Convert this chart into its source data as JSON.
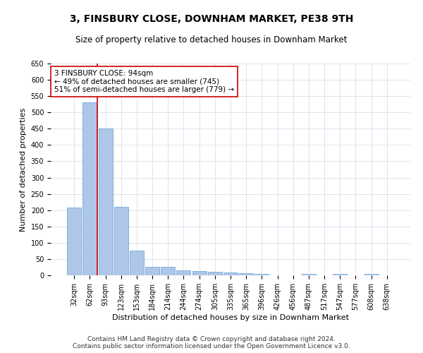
{
  "title": "3, FINSBURY CLOSE, DOWNHAM MARKET, PE38 9TH",
  "subtitle": "Size of property relative to detached houses in Downham Market",
  "xlabel": "Distribution of detached houses by size in Downham Market",
  "ylabel": "Number of detached properties",
  "categories": [
    "32sqm",
    "62sqm",
    "93sqm",
    "123sqm",
    "153sqm",
    "184sqm",
    "214sqm",
    "244sqm",
    "274sqm",
    "305sqm",
    "335sqm",
    "365sqm",
    "396sqm",
    "426sqm",
    "456sqm",
    "487sqm",
    "517sqm",
    "547sqm",
    "577sqm",
    "608sqm",
    "638sqm"
  ],
  "values": [
    207,
    530,
    450,
    210,
    75,
    27,
    27,
    15,
    12,
    10,
    8,
    7,
    5,
    0,
    0,
    5,
    0,
    5,
    0,
    5,
    0
  ],
  "bar_color": "#aec6e8",
  "bar_edge_color": "#5a9fd4",
  "vline_x_index": 2,
  "vline_color": "#cc0000",
  "annotation_line1": "3 FINSBURY CLOSE: 94sqm",
  "annotation_line2": "← 49% of detached houses are smaller (745)",
  "annotation_line3": "51% of semi-detached houses are larger (779) →",
  "annotation_box_color": "#ffffff",
  "annotation_box_edge_color": "#cc0000",
  "ylim": [
    0,
    650
  ],
  "yticks": [
    0,
    50,
    100,
    150,
    200,
    250,
    300,
    350,
    400,
    450,
    500,
    550,
    600,
    650
  ],
  "footer_text": "Contains HM Land Registry data © Crown copyright and database right 2024.\nContains public sector information licensed under the Open Government Licence v3.0.",
  "bg_color": "#ffffff",
  "grid_color": "#d0d8e8",
  "title_fontsize": 10,
  "subtitle_fontsize": 8.5,
  "xlabel_fontsize": 8,
  "ylabel_fontsize": 8,
  "tick_fontsize": 7,
  "annotation_fontsize": 7.5,
  "footer_fontsize": 6.5
}
